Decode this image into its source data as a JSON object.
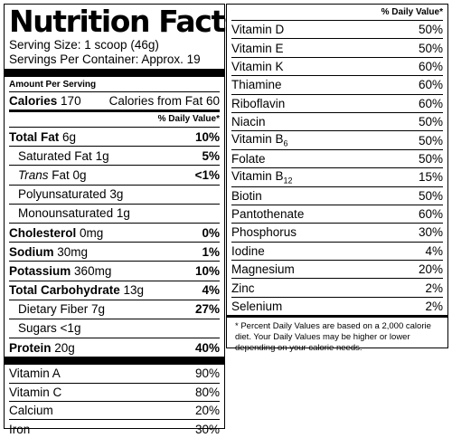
{
  "title": "Nutrition Facts",
  "serving_size": "Serving Size: 1 scoop (46g)",
  "servings_per_container": "Servings Per Container: Approx. 19",
  "amount_per_serving": "Amount Per Serving",
  "calories": {
    "label": "Calories",
    "value": "170",
    "from_fat_label": "Calories from Fat",
    "from_fat_value": "60"
  },
  "daily_value_header": "% Daily Value*",
  "nutrients": [
    {
      "label": "Total Fat",
      "amount": "6g",
      "pct": "10%"
    },
    {
      "label": "Saturated Fat",
      "amount": "1g",
      "pct": "5%"
    },
    {
      "label": "Trans",
      "amount": "Fat 0g",
      "pct": "<1%"
    },
    {
      "label": "Polyunsaturated",
      "amount": "3g",
      "pct": ""
    },
    {
      "label": "Monounsaturated",
      "amount": "1g",
      "pct": ""
    },
    {
      "label": "Cholesterol",
      "amount": "0mg",
      "pct": "0%"
    },
    {
      "label": "Sodium",
      "amount": "30mg",
      "pct": "1%"
    },
    {
      "label": "Potassium",
      "amount": "360mg",
      "pct": "10%"
    },
    {
      "label": "Total Carbohydrate",
      "amount": "13g",
      "pct": "4%"
    },
    {
      "label": "Dietary Fiber",
      "amount": "7g",
      "pct": "27%"
    },
    {
      "label": "Sugars",
      "amount": "<1g",
      "pct": ""
    },
    {
      "label": "Protein",
      "amount": "20g",
      "pct": "40%"
    }
  ],
  "left_vitamins": [
    {
      "label": "Vitamin A",
      "pct": "90%"
    },
    {
      "label": "Vitamin C",
      "pct": "80%"
    },
    {
      "label": "Calcium",
      "pct": "20%"
    },
    {
      "label": "Iron",
      "pct": "30%"
    }
  ],
  "right_vitamins": [
    {
      "label": "Vitamin D",
      "pct": "50%"
    },
    {
      "label": "Vitamin E",
      "pct": "50%"
    },
    {
      "label": "Vitamin K",
      "pct": "60%"
    },
    {
      "label": "Thiamine",
      "pct": "60%"
    },
    {
      "label": "Riboflavin",
      "pct": "60%"
    },
    {
      "label": "Niacin",
      "pct": "50%"
    },
    {
      "label": "Vitamin B",
      "sub": "6",
      "pct": "50%"
    },
    {
      "label": "Folate",
      "pct": "50%"
    },
    {
      "label": "Vitamin B",
      "sub": "12",
      "pct": "15%"
    },
    {
      "label": "Biotin",
      "pct": "50%"
    },
    {
      "label": "Pantothenate",
      "pct": "60%"
    },
    {
      "label": "Phosphorus",
      "pct": "30%"
    },
    {
      "label": "Iodine",
      "pct": "4%"
    },
    {
      "label": "Magnesium",
      "pct": "20%"
    },
    {
      "label": "Zinc",
      "pct": "2%"
    },
    {
      "label": "Selenium",
      "pct": "2%"
    }
  ],
  "footnote": "* Percent Daily Values are based on a 2,000 calorie diet. Your Daily Values may be higher or lower depending on your calorie needs."
}
